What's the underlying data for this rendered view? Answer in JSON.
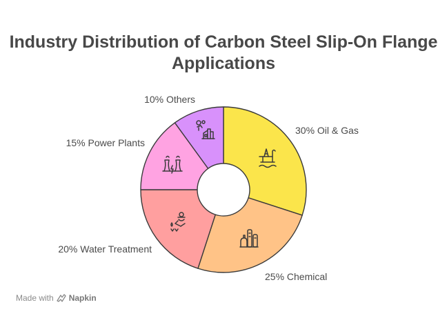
{
  "chart_data": {
    "type": "pie",
    "title_lines": [
      "Industry Distribution of Carbon Steel Slip-On Flange",
      "Applications"
    ],
    "donut": true,
    "slices": [
      {
        "label": "30% Oil & Gas",
        "value": 30,
        "color": "#FBE54B",
        "icon": "oil-rig-icon"
      },
      {
        "label": "25% Chemical",
        "value": 25,
        "color": "#FFC387",
        "icon": "chemical-plant-icon"
      },
      {
        "label": "20% Water Treatment",
        "value": 20,
        "color": "#FF9F9F",
        "icon": "water-treatment-icon"
      },
      {
        "label": "15% Power Plants",
        "value": 15,
        "color": "#FFA3E2",
        "icon": "power-plant-icon"
      },
      {
        "label": "10% Others",
        "value": 10,
        "color": "#D891FB",
        "icon": "factory-icon"
      }
    ],
    "legend": "none"
  },
  "footer": {
    "made_with": "Made with",
    "brand": "Napkin",
    "brand_icon": "napkin-logo-icon"
  }
}
